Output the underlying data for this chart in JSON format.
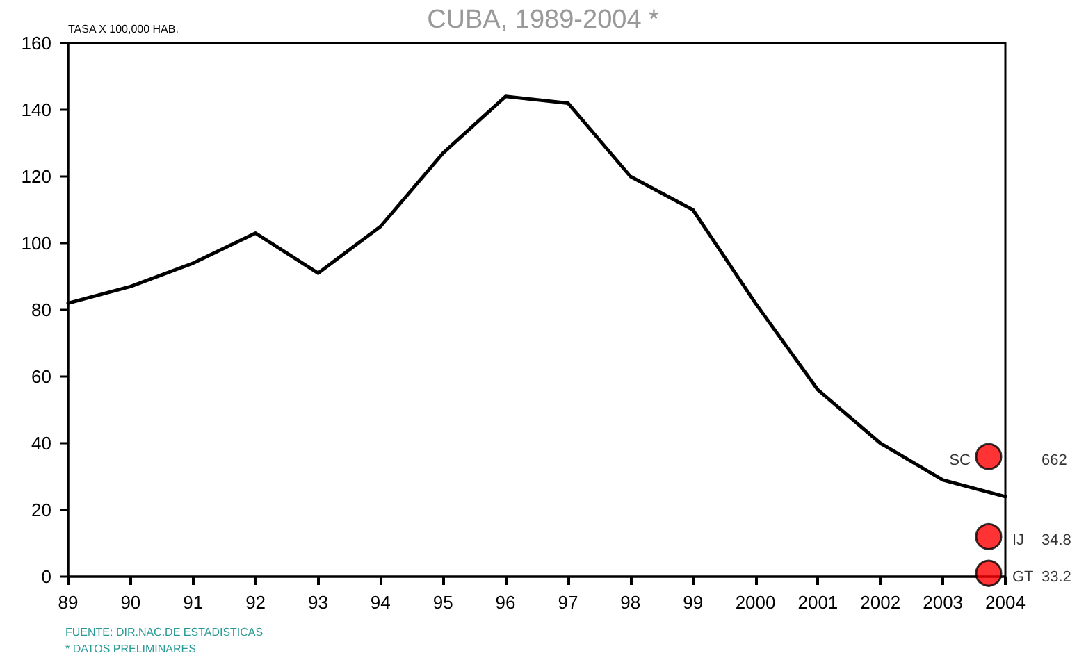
{
  "chart_data": {
    "type": "line",
    "title": "CUBA, 1989-2004 *",
    "ylabel": "TASA X 100,000 HAB.",
    "categories": [
      "89",
      "90",
      "91",
      "92",
      "93",
      "94",
      "95",
      "96",
      "97",
      "98",
      "99",
      "2000",
      "2001",
      "2002",
      "2003",
      "2004"
    ],
    "series": [
      {
        "color": "#000000",
        "values": [
          82,
          87,
          94,
          103,
          91,
          105,
          127,
          144,
          142,
          120,
          110,
          82,
          56,
          40,
          29,
          24
        ],
        "marker": "none"
      },
      {
        "type": "scatter",
        "color": "#ff0000",
        "values": [
          null,
          null,
          null,
          null,
          null,
          null,
          null,
          null,
          null,
          null,
          null,
          null,
          null,
          null,
          null,
          36
        ],
        "marker": "circle"
      },
      {
        "type": "scatter",
        "color": "#ff0000",
        "values": [
          null,
          null,
          null,
          null,
          null,
          null,
          null,
          null,
          null,
          null,
          null,
          null,
          null,
          null,
          null,
          12
        ],
        "marker": "circle"
      },
      {
        "type": "scatter",
        "color": "#ff0000",
        "values": [
          null,
          null,
          null,
          null,
          null,
          null,
          null,
          null,
          null,
          null,
          null,
          null,
          null,
          null,
          null,
          1
        ],
        "marker": "circle"
      }
    ],
    "annotations": [
      {
        "text": "SC",
        "x": "2004",
        "y": 36
      },
      {
        "text": "662",
        "x": "2004",
        "y": 36
      },
      {
        "text": "IJ",
        "x": "2004",
        "y": 12
      },
      {
        "text": "34.8",
        "x": "2004",
        "y": 12
      },
      {
        "text": "GT",
        "x": "2004",
        "y": 1
      },
      {
        "text": "33.2",
        "x": "2004",
        "y": 1
      },
      "FUENTE: DIR.NAC.DE ESTADISTICAS",
      "* DATOS PRELIMINARES"
    ],
    "ylim": [
      0,
      160
    ],
    "yticks": [
      0,
      20,
      40,
      60,
      80,
      100,
      120,
      140,
      160
    ],
    "line_style": "solid"
  }
}
